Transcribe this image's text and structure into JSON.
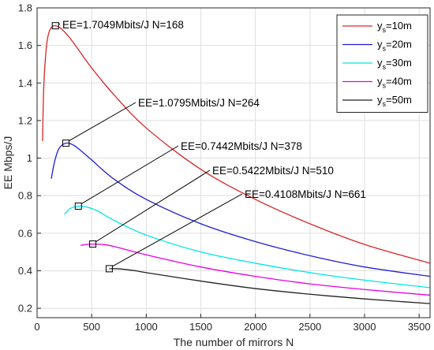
{
  "chart_data": {
    "type": "line",
    "xlabel": "The number of mirrors N",
    "ylabel": "EE  Mbps/J",
    "xlim": [
      0,
      3600
    ],
    "ylim": [
      0.15,
      1.8
    ],
    "grid": true,
    "legend_position": "top-right",
    "x_ticks": [
      "0",
      "500",
      "1000",
      "1500",
      "2000",
      "2500",
      "3000",
      "3500"
    ],
    "y_ticks": [
      "0.2",
      "0.4",
      "0.6",
      "0.8",
      "1",
      "1.2",
      "1.4",
      "1.6",
      "1.8"
    ],
    "series": [
      {
        "legend_base": "y",
        "legend_sub": "s",
        "legend_suffix": "=10m",
        "color": "#d62728",
        "x": [
          50,
          60,
          80,
          100,
          130,
          168,
          220,
          300,
          400,
          500,
          700,
          1000,
          1500,
          2000,
          2500,
          3000,
          3600
        ],
        "y": [
          1.09,
          1.36,
          1.56,
          1.65,
          1.695,
          1.7049,
          1.69,
          1.64,
          1.56,
          1.48,
          1.34,
          1.16,
          0.94,
          0.78,
          0.65,
          0.54,
          0.44
        ],
        "peak": {
          "x": 168,
          "y": 1.7049,
          "label": "EE=1.7049Mbits/J  N=168"
        }
      },
      {
        "legend_base": "y",
        "legend_sub": "s",
        "legend_suffix": "=20m",
        "color": "#1f1fd6",
        "x": [
          130,
          160,
          200,
          264,
          330,
          400,
          500,
          700,
          1000,
          1500,
          2000,
          2500,
          3000,
          3600
        ],
        "y": [
          0.89,
          0.98,
          1.05,
          1.0795,
          1.07,
          1.04,
          0.99,
          0.89,
          0.78,
          0.65,
          0.555,
          0.48,
          0.42,
          0.37
        ],
        "peak": {
          "x": 264,
          "y": 1.0795,
          "label": "EE=1.0795Mbits/J  N=264"
        }
      },
      {
        "legend_base": "y",
        "legend_sub": "s",
        "legend_suffix": "=30m",
        "color": "#00e5e5",
        "x": [
          250,
          300,
          378,
          450,
          550,
          700,
          1000,
          1500,
          2000,
          2500,
          3000,
          3600
        ],
        "y": [
          0.7,
          0.73,
          0.7442,
          0.74,
          0.72,
          0.67,
          0.59,
          0.5,
          0.44,
          0.39,
          0.35,
          0.31
        ],
        "peak": {
          "x": 378,
          "y": 0.7442,
          "label": "EE=0.7442Mbits/J  N=378"
        }
      },
      {
        "legend_base": "y",
        "legend_sub": "s",
        "legend_suffix": "=40m",
        "color": "#e600e6",
        "x": [
          400,
          450,
          510,
          600,
          700,
          1000,
          1500,
          2000,
          2500,
          3000,
          3600
        ],
        "y": [
          0.535,
          0.54,
          0.5422,
          0.54,
          0.53,
          0.485,
          0.42,
          0.37,
          0.33,
          0.3,
          0.27
        ],
        "peak": {
          "x": 510,
          "y": 0.5422,
          "label": "EE=0.5422Mbits/J  N=510"
        }
      },
      {
        "legend_base": "y",
        "legend_sub": "s",
        "legend_suffix": "=50m",
        "color": "#222222",
        "x": [
          661,
          750,
          900,
          1000,
          1500,
          2000,
          2500,
          3000,
          3600
        ],
        "y": [
          0.4108,
          0.41,
          0.4,
          0.39,
          0.345,
          0.305,
          0.275,
          0.25,
          0.225
        ],
        "peak": {
          "x": 661,
          "y": 0.4108,
          "label": "EE=0.4108Mbits/J  N=661"
        }
      }
    ]
  }
}
